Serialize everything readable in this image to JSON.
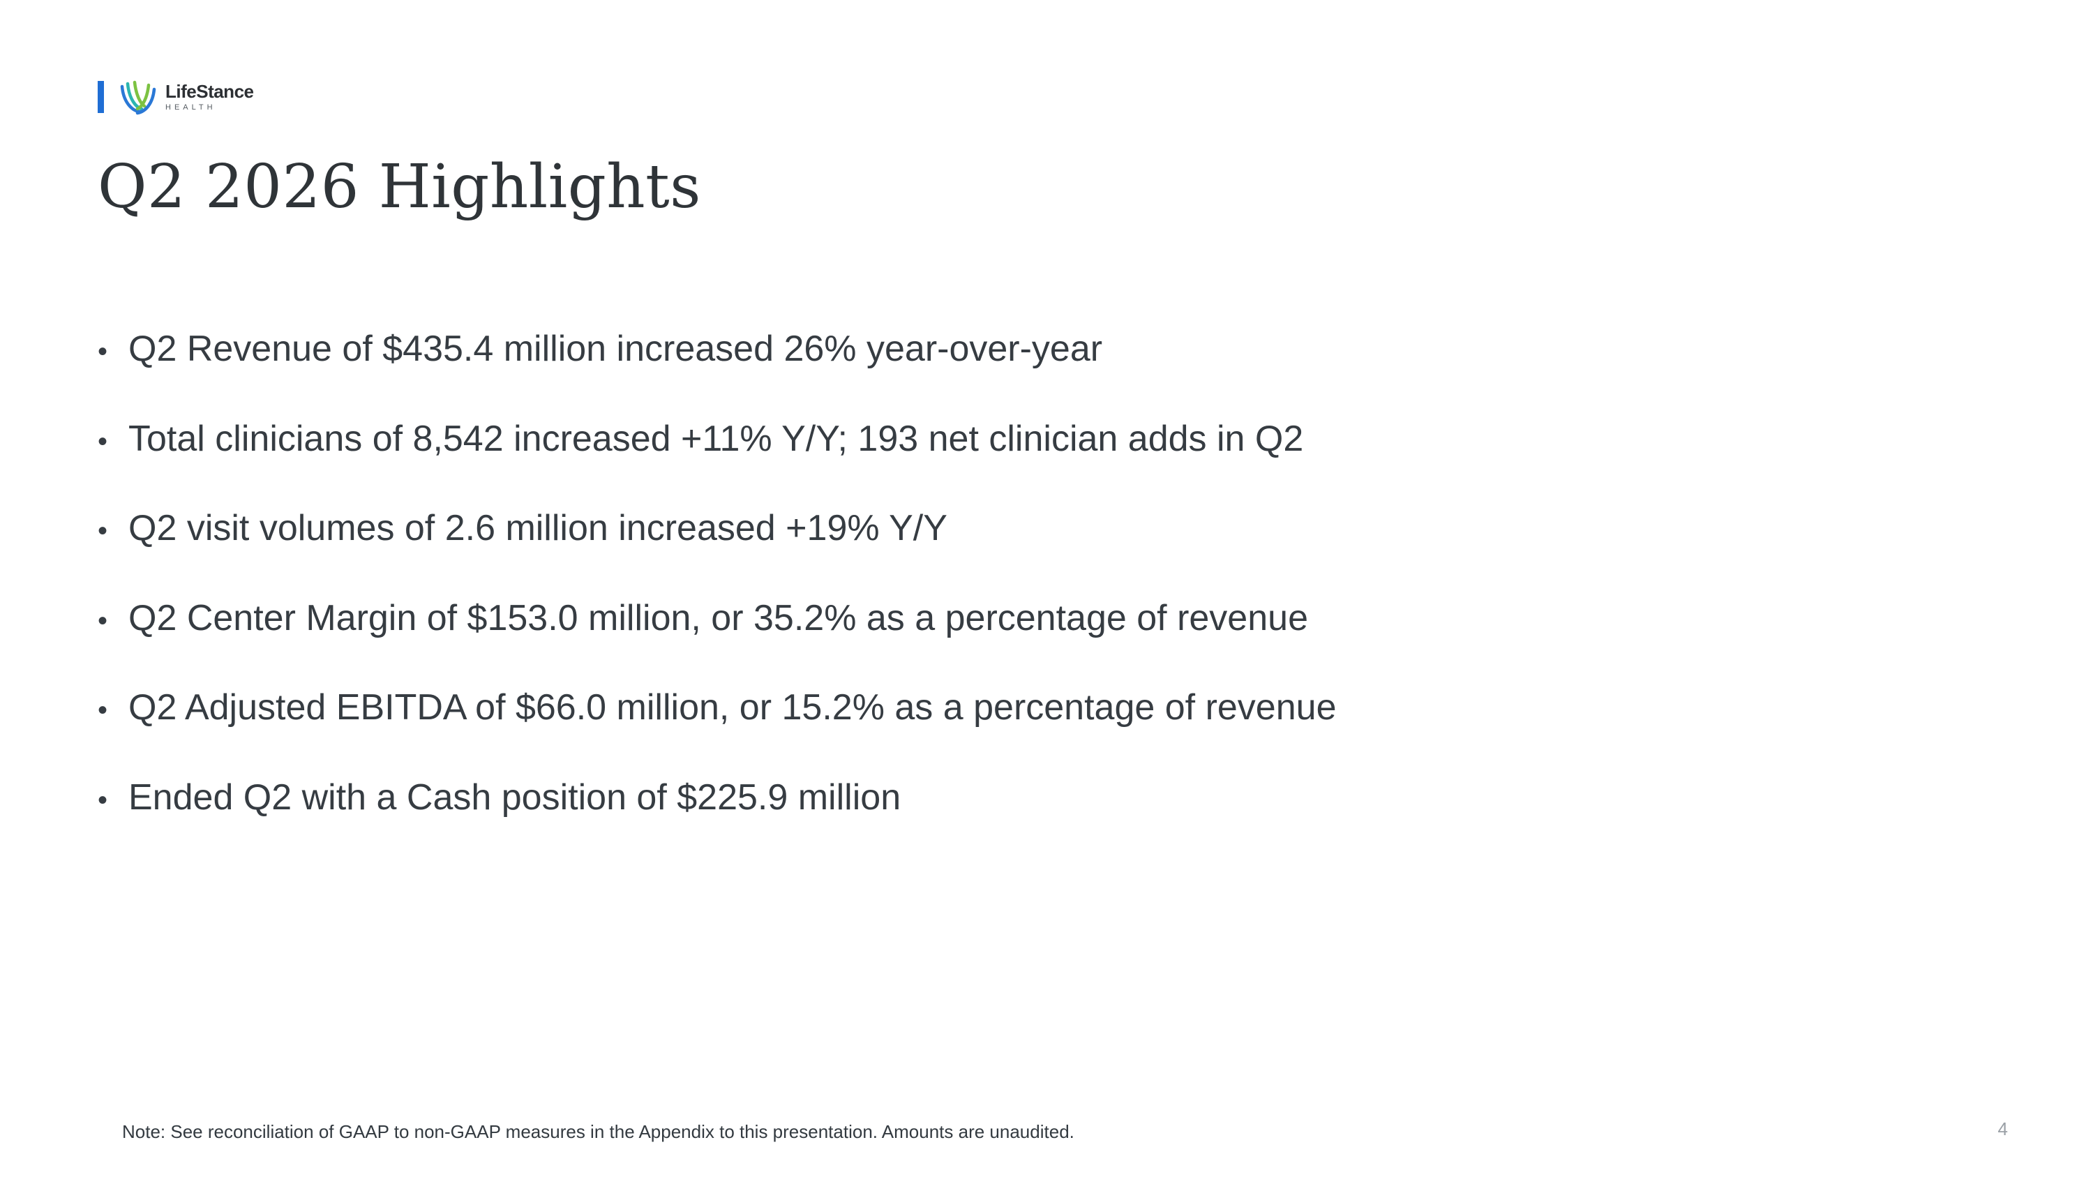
{
  "logo": {
    "name": "LifeStance",
    "sub": "HEALTH",
    "colors": {
      "bar": "#1f6ed4",
      "blue": "#2a78d6",
      "green": "#7cc242",
      "teal": "#2bb5b0"
    }
  },
  "title": "Q2 2026 Highlights",
  "bullets": [
    "Q2 Revenue of $435.4 million increased 26% year-over-year",
    "Total clinicians of 8,542 increased +11% Y/Y; 193 net clinician adds in Q2",
    "Q2 visit volumes of 2.6 million increased +19% Y/Y",
    "Q2 Center Margin of $153.0 million, or 35.2% as a percentage of revenue",
    "Q2 Adjusted EBITDA of $66.0 million, or 15.2% as a percentage of revenue",
    "Ended Q2 with a Cash position of $225.9 million"
  ],
  "bullet_symbol": "•",
  "note": "Note:  See reconciliation of GAAP to non-GAAP measures in the Appendix to this presentation. Amounts are unaudited.",
  "page_number": "4"
}
